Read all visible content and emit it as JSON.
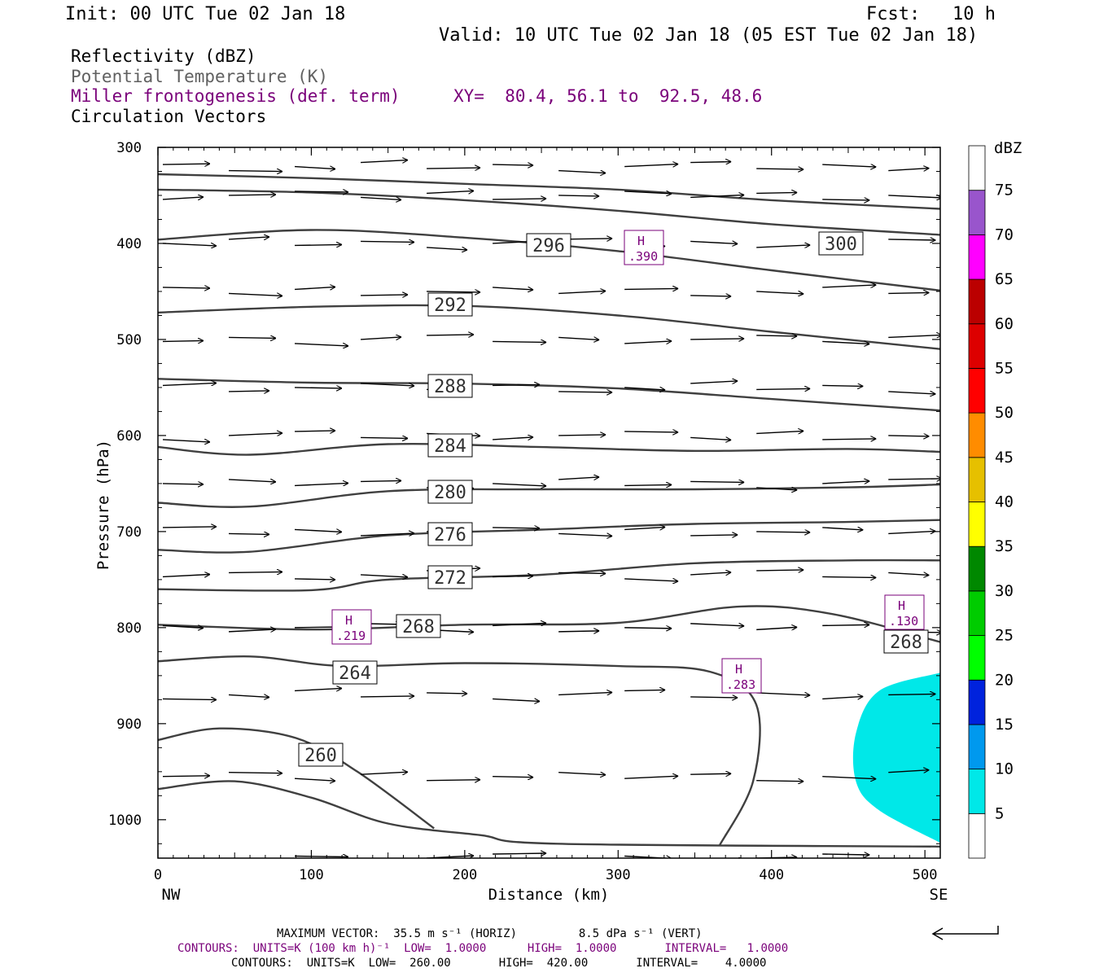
{
  "header": {
    "init": "Init: 00 UTC Tue 02 Jan 18",
    "fcst": "Fcst:   10 h",
    "valid": "Valid: 10 UTC Tue 02 Jan 18 (05 EST Tue 02 Jan 18)"
  },
  "legend": {
    "reflectivity": "Reflectivity (dBZ)",
    "theta": "Potential Temperature (K)",
    "frontogenesis": "Miller frontogenesis (def. term)",
    "xy": "XY=  80.4, 56.1 to  92.5, 48.6",
    "circulation": "Circulation Vectors"
  },
  "colorbar": {
    "title": "dBZ",
    "levels": [
      "5",
      "10",
      "15",
      "20",
      "25",
      "30",
      "35",
      "40",
      "45",
      "50",
      "55",
      "60",
      "65",
      "70",
      "75"
    ],
    "colors": [
      "#00e8e8",
      "#0099ee",
      "#0022dd",
      "#00ff00",
      "#00cc00",
      "#008800",
      "#ffff00",
      "#e6c000",
      "#ff8c00",
      "#ff0000",
      "#dd0000",
      "#bb0000",
      "#ff00ff",
      "#9955cc",
      "#ffffff"
    ]
  },
  "colors": {
    "purple": "#7a007a",
    "contour": "#404040",
    "reflectivity": "#00e8e8"
  },
  "footer": {
    "line1": "MAXIMUM VECTOR:  35.5 m s⁻¹ (HORIZ)         8.5 dPa s⁻¹ (VERT)",
    "line2": "CONTOURS:  UNITS=K (100 km h)⁻¹  LOW=  1.0000      HIGH=  1.0000       INTERVAL=   1.0000",
    "line3": "CONTOURS:  UNITS=K  LOW=  260.00       HIGH=  420.00       INTERVAL=    4.0000"
  },
  "chart_data": {
    "type": "cross-section",
    "xlabel": "Distance (km)",
    "ylabel": "Pressure (hPa)",
    "x_ticks": [
      "0",
      "100",
      "200",
      "300",
      "400",
      "500"
    ],
    "y_ticks": [
      "300",
      "400",
      "500",
      "600",
      "700",
      "800",
      "900",
      "1000"
    ],
    "xlim": [
      0,
      510
    ],
    "ylim": [
      1040,
      300
    ],
    "x_end_labels": {
      "left": "NW",
      "right": "SE"
    },
    "theta_contours": [
      {
        "label": "300",
        "points": [
          [
            0,
            328
          ],
          [
            100,
            332
          ],
          [
            200,
            338
          ],
          [
            300,
            344
          ],
          [
            400,
            355
          ],
          [
            510,
            364
          ]
        ]
      },
      {
        "label": "",
        "points": [
          [
            0,
            344
          ],
          [
            100,
            347
          ],
          [
            200,
            355
          ],
          [
            300,
            366
          ],
          [
            400,
            380
          ],
          [
            510,
            391
          ]
        ]
      },
      {
        "label": "296",
        "points": [
          [
            0,
            396
          ],
          [
            100,
            386
          ],
          [
            200,
            394
          ],
          [
            300,
            408
          ],
          [
            400,
            428
          ],
          [
            510,
            449
          ]
        ]
      },
      {
        "label": "292",
        "points": [
          [
            0,
            472
          ],
          [
            100,
            466
          ],
          [
            200,
            465
          ],
          [
            300,
            475
          ],
          [
            400,
            492
          ],
          [
            510,
            510
          ]
        ]
      },
      {
        "label": "288",
        "points": [
          [
            0,
            541
          ],
          [
            100,
            545
          ],
          [
            200,
            546
          ],
          [
            300,
            551
          ],
          [
            400,
            562
          ],
          [
            510,
            574
          ]
        ]
      },
      {
        "label": "284",
        "points": [
          [
            0,
            612
          ],
          [
            60,
            620
          ],
          [
            150,
            609
          ],
          [
            250,
            612
          ],
          [
            350,
            616
          ],
          [
            450,
            614
          ],
          [
            510,
            617
          ]
        ]
      },
      {
        "label": "280",
        "points": [
          [
            0,
            670
          ],
          [
            60,
            674
          ],
          [
            150,
            658
          ],
          [
            250,
            656
          ],
          [
            350,
            656
          ],
          [
            450,
            654
          ],
          [
            510,
            651
          ]
        ]
      },
      {
        "label": "276",
        "points": [
          [
            0,
            719
          ],
          [
            60,
            721
          ],
          [
            150,
            704
          ],
          [
            250,
            698
          ],
          [
            350,
            692
          ],
          [
            450,
            690
          ],
          [
            510,
            688
          ]
        ]
      },
      {
        "label": "272",
        "points": [
          [
            0,
            760
          ],
          [
            100,
            761
          ],
          [
            150,
            750
          ],
          [
            250,
            745
          ],
          [
            350,
            733
          ],
          [
            450,
            730
          ],
          [
            510,
            730
          ]
        ]
      },
      {
        "label": "268",
        "points": [
          [
            0,
            797
          ],
          [
            100,
            802
          ],
          [
            200,
            797
          ],
          [
            300,
            795
          ],
          [
            380,
            778
          ],
          [
            440,
            786
          ],
          [
            510,
            815
          ]
        ]
      },
      {
        "label": "264",
        "points": [
          [
            0,
            835
          ],
          [
            60,
            830
          ],
          [
            120,
            840
          ],
          [
            200,
            837
          ],
          [
            300,
            840
          ],
          [
            360,
            846
          ],
          [
            390,
            880
          ],
          [
            388,
            960
          ],
          [
            366,
            1027
          ]
        ]
      },
      {
        "label": "260",
        "points": [
          [
            0,
            917
          ],
          [
            40,
            905
          ],
          [
            90,
            915
          ],
          [
            130,
            950
          ],
          [
            180,
            1009
          ]
        ]
      },
      {
        "label": "",
        "points": [
          [
            0,
            968
          ],
          [
            50,
            960
          ],
          [
            100,
            977
          ],
          [
            150,
            1004
          ],
          [
            210,
            1016
          ],
          [
            260,
            1025
          ],
          [
            510,
            1028
          ]
        ]
      }
    ],
    "frontogenesis_maxima": [
      {
        "label": "H",
        "value": ".219",
        "x": 127,
        "p": 800
      },
      {
        "label": "H",
        "value": ".390",
        "x": 323,
        "p": 405
      },
      {
        "label": "H",
        "value": ".283",
        "x": 381,
        "p": 850
      },
      {
        "label": "H",
        "value": ".130",
        "x": 482,
        "p": 790
      }
    ],
    "reflectivity_regions": [
      {
        "dbz": "5",
        "points": [
          [
            510,
            847
          ],
          [
            470,
            866
          ],
          [
            455,
            910
          ],
          [
            455,
            960
          ],
          [
            470,
            990
          ],
          [
            510,
            1024
          ]
        ]
      }
    ],
    "reference_vector": true
  }
}
